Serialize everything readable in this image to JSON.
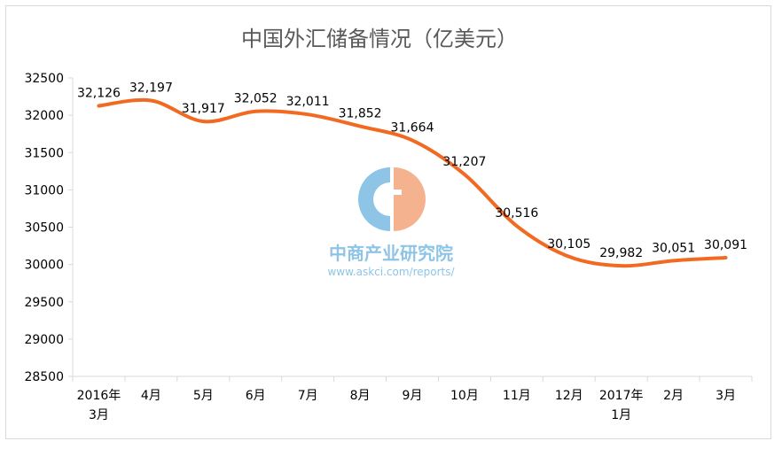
{
  "chart_data": {
    "type": "line",
    "title": "中国外汇储备情况（亿美元）",
    "categories": [
      [
        "2016年",
        "3月"
      ],
      [
        "4月"
      ],
      [
        "5月"
      ],
      [
        "6月"
      ],
      [
        "7月"
      ],
      [
        "8月"
      ],
      [
        "9月"
      ],
      [
        "10月"
      ],
      [
        "11月"
      ],
      [
        "12月"
      ],
      [
        "2017年",
        "1月"
      ],
      [
        "2月"
      ],
      [
        "3月"
      ]
    ],
    "series": [
      {
        "values": [
          32126,
          32197,
          31917,
          32052,
          32011,
          31852,
          31664,
          31207,
          30516,
          30105,
          29982,
          30051,
          30091
        ],
        "color": "#f26a21"
      }
    ],
    "data_labels": [
      "32,126",
      "32,197",
      "31,917",
      "32,052",
      "32,011",
      "31,852",
      "31,664",
      "31,207",
      "30,516",
      "30,105",
      "29,982",
      "30,051",
      "30,091"
    ],
    "yticks": [
      "32500",
      "32000",
      "31500",
      "31000",
      "30500",
      "30000",
      "29500",
      "29000",
      "28500"
    ],
    "ylim": [
      28500,
      32500
    ],
    "grid": false,
    "legend": "none",
    "xlabel": "",
    "ylabel": ""
  },
  "watermark": {
    "name": "中商产业研究院",
    "url": "www.askci.com/reports/",
    "colors": {
      "blue": "#8ec5e6",
      "peach": "#f5b28f"
    }
  }
}
